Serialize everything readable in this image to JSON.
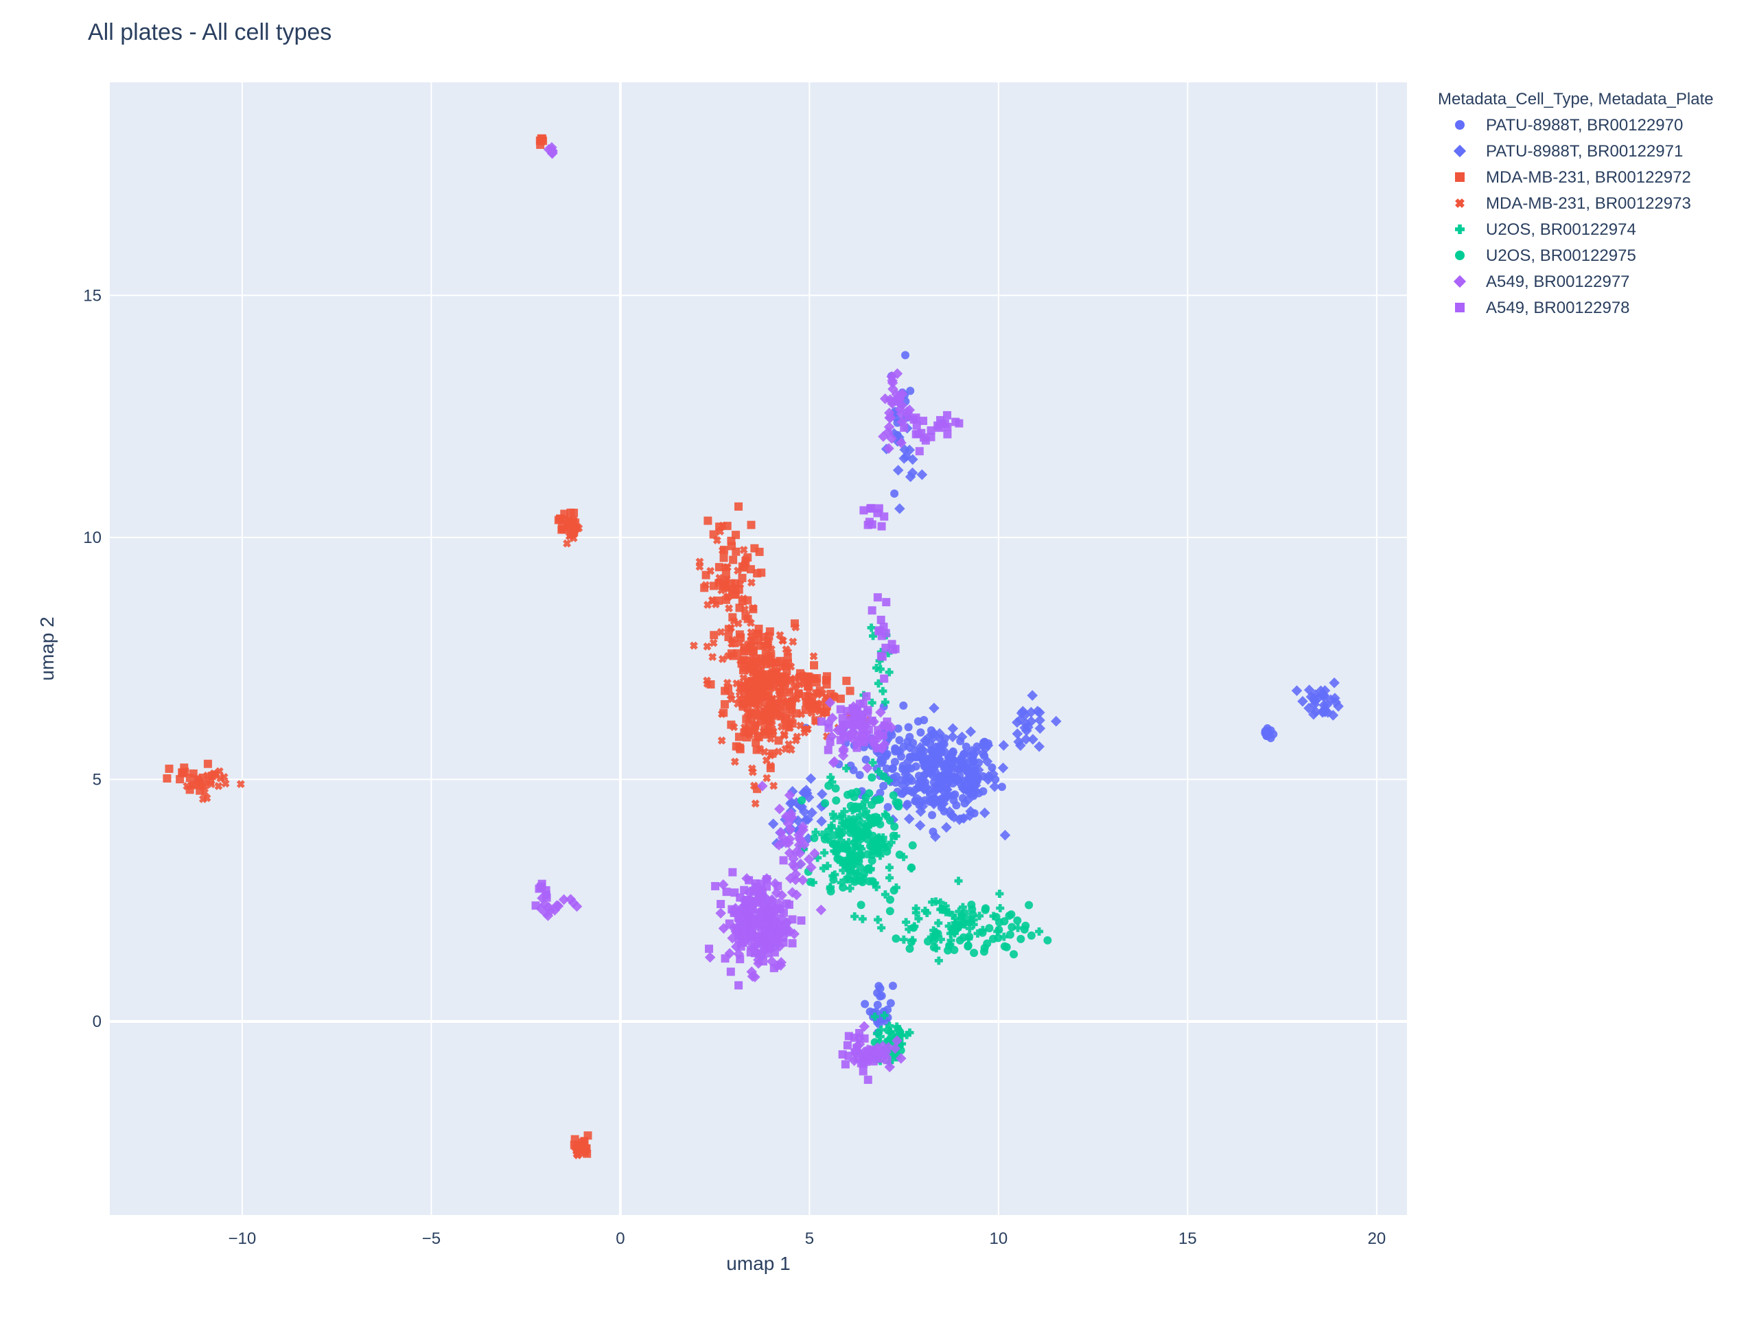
{
  "chart_data": {
    "type": "scatter",
    "title": "All plates - All cell types",
    "xlabel": "umap 1",
    "ylabel": "umap 2",
    "xlim": [
      -13.5,
      20.8
    ],
    "ylim": [
      -4.0,
      19.4
    ],
    "xticks": [
      -10,
      -5,
      0,
      5,
      10,
      15,
      20
    ],
    "yticks": [
      0,
      5,
      10,
      15
    ],
    "xtick_labels": [
      "−10",
      "−5",
      "0",
      "5",
      "10",
      "15",
      "20"
    ],
    "ytick_labels": [
      "0",
      "5",
      "10",
      "15"
    ],
    "grid": true,
    "plot_bgcolor": "#E5ECF6",
    "legend": {
      "title": "Metadata_Cell_Type, Metadata_Plate",
      "position": "top-right, outside plot"
    },
    "series": [
      {
        "name": "PATU-8988T, BR00122970",
        "color": "#636EFA",
        "symbol": "circle",
        "clusters": [
          {
            "cx": 8.5,
            "cy": 5.1,
            "sx": 0.75,
            "sy": 0.45,
            "n": 160
          },
          {
            "cx": 7.0,
            "cy": 5.6,
            "sx": 0.6,
            "sy": 0.4,
            "n": 60
          },
          {
            "cx": 17.1,
            "cy": 5.95,
            "sx": 0.06,
            "sy": 0.06,
            "n": 14
          },
          {
            "cx": 6.9,
            "cy": 0.3,
            "sx": 0.15,
            "sy": 0.25,
            "n": 25
          },
          {
            "cx": 7.4,
            "cy": 12.6,
            "sx": 0.15,
            "sy": 0.5,
            "n": 20
          }
        ]
      },
      {
        "name": "PATU-8988T, BR00122971",
        "color": "#636EFA",
        "symbol": "diamond",
        "clusters": [
          {
            "cx": 8.6,
            "cy": 5.0,
            "sx": 0.7,
            "sy": 0.45,
            "n": 150
          },
          {
            "cx": 10.8,
            "cy": 6.0,
            "sx": 0.3,
            "sy": 0.3,
            "n": 25
          },
          {
            "cx": 18.6,
            "cy": 6.65,
            "sx": 0.25,
            "sy": 0.18,
            "n": 30
          },
          {
            "cx": 4.8,
            "cy": 4.3,
            "sx": 0.4,
            "sy": 0.3,
            "n": 35
          },
          {
            "cx": 7.5,
            "cy": 11.8,
            "sx": 0.2,
            "sy": 0.3,
            "n": 15
          }
        ]
      },
      {
        "name": "MDA-MB-231, BR00122972",
        "color": "#EF553B",
        "symbol": "square",
        "clusters": [
          {
            "cx": 3.7,
            "cy": 6.8,
            "sx": 0.45,
            "sy": 0.7,
            "n": 170
          },
          {
            "cx": 5.0,
            "cy": 6.8,
            "sx": 0.45,
            "sy": 0.3,
            "n": 50
          },
          {
            "cx": 2.9,
            "cy": 9.0,
            "sx": 0.35,
            "sy": 0.7,
            "n": 55
          },
          {
            "cx": -1.4,
            "cy": 10.3,
            "sx": 0.12,
            "sy": 0.15,
            "n": 20
          },
          {
            "cx": -2.1,
            "cy": 18.2,
            "sx": 0.04,
            "sy": 0.04,
            "n": 6
          },
          {
            "cx": -1.0,
            "cy": -2.6,
            "sx": 0.1,
            "sy": 0.12,
            "n": 18
          },
          {
            "cx": -11.2,
            "cy": 5.0,
            "sx": 0.35,
            "sy": 0.15,
            "n": 20
          }
        ]
      },
      {
        "name": "MDA-MB-231, BR00122973",
        "color": "#EF553B",
        "symbol": "x",
        "clusters": [
          {
            "cx": 3.8,
            "cy": 6.7,
            "sx": 0.5,
            "sy": 0.7,
            "n": 170
          },
          {
            "cx": 5.2,
            "cy": 6.6,
            "sx": 0.5,
            "sy": 0.35,
            "n": 45
          },
          {
            "cx": 2.8,
            "cy": 8.8,
            "sx": 0.4,
            "sy": 0.6,
            "n": 45
          },
          {
            "cx": -1.3,
            "cy": 10.2,
            "sx": 0.1,
            "sy": 0.15,
            "n": 16
          },
          {
            "cx": -1.1,
            "cy": -2.7,
            "sx": 0.08,
            "sy": 0.12,
            "n": 12
          },
          {
            "cx": -11.0,
            "cy": 4.95,
            "sx": 0.35,
            "sy": 0.15,
            "n": 18
          }
        ]
      },
      {
        "name": "U2OS, BR00122974",
        "color": "#00CC96",
        "symbol": "cross",
        "clusters": [
          {
            "cx": 6.2,
            "cy": 3.6,
            "sx": 0.55,
            "sy": 0.6,
            "n": 120
          },
          {
            "cx": 8.7,
            "cy": 2.0,
            "sx": 0.8,
            "sy": 0.35,
            "n": 60
          },
          {
            "cx": 6.8,
            "cy": 7.2,
            "sx": 0.15,
            "sy": 0.5,
            "n": 14
          },
          {
            "cx": 7.1,
            "cy": -0.4,
            "sx": 0.25,
            "sy": 0.2,
            "n": 25
          }
        ]
      },
      {
        "name": "U2OS, BR00122975",
        "color": "#00CC96",
        "symbol": "circle",
        "clusters": [
          {
            "cx": 6.3,
            "cy": 3.8,
            "sx": 0.5,
            "sy": 0.6,
            "n": 130
          },
          {
            "cx": 9.2,
            "cy": 1.8,
            "sx": 0.8,
            "sy": 0.3,
            "n": 60
          },
          {
            "cx": 7.2,
            "cy": -0.5,
            "sx": 0.25,
            "sy": 0.2,
            "n": 20
          }
        ]
      },
      {
        "name": "A549, BR00122977",
        "color": "#AB63FA",
        "symbol": "diamond",
        "clusters": [
          {
            "cx": 3.7,
            "cy": 2.0,
            "sx": 0.4,
            "sy": 0.45,
            "n": 120
          },
          {
            "cx": 6.4,
            "cy": 6.0,
            "sx": 0.45,
            "sy": 0.3,
            "n": 50
          },
          {
            "cx": 4.6,
            "cy": 3.6,
            "sx": 0.25,
            "sy": 0.6,
            "n": 40
          },
          {
            "cx": 7.3,
            "cy": 12.7,
            "sx": 0.2,
            "sy": 0.4,
            "n": 30
          },
          {
            "cx": 6.6,
            "cy": -0.6,
            "sx": 0.3,
            "sy": 0.2,
            "n": 30
          },
          {
            "cx": -1.8,
            "cy": 18.0,
            "sx": 0.04,
            "sy": 0.04,
            "n": 6
          },
          {
            "cx": -1.7,
            "cy": 2.4,
            "sx": 0.35,
            "sy": 0.08,
            "n": 14
          }
        ]
      },
      {
        "name": "A549, BR00122978",
        "color": "#AB63FA",
        "symbol": "square",
        "clusters": [
          {
            "cx": 3.6,
            "cy": 2.1,
            "sx": 0.45,
            "sy": 0.45,
            "n": 120
          },
          {
            "cx": 6.3,
            "cy": 6.1,
            "sx": 0.4,
            "sy": 0.3,
            "n": 45
          },
          {
            "cx": 6.9,
            "cy": 8.0,
            "sx": 0.15,
            "sy": 0.5,
            "n": 16
          },
          {
            "cx": 6.7,
            "cy": 10.4,
            "sx": 0.15,
            "sy": 0.12,
            "n": 10
          },
          {
            "cx": 8.6,
            "cy": 12.4,
            "sx": 0.2,
            "sy": 0.12,
            "n": 10
          },
          {
            "cx": 7.8,
            "cy": 12.2,
            "sx": 0.2,
            "sy": 0.2,
            "n": 15
          },
          {
            "cx": 6.5,
            "cy": -0.7,
            "sx": 0.3,
            "sy": 0.2,
            "n": 25
          },
          {
            "cx": -2.1,
            "cy": 2.6,
            "sx": 0.1,
            "sy": 0.15,
            "n": 8
          }
        ]
      }
    ]
  }
}
